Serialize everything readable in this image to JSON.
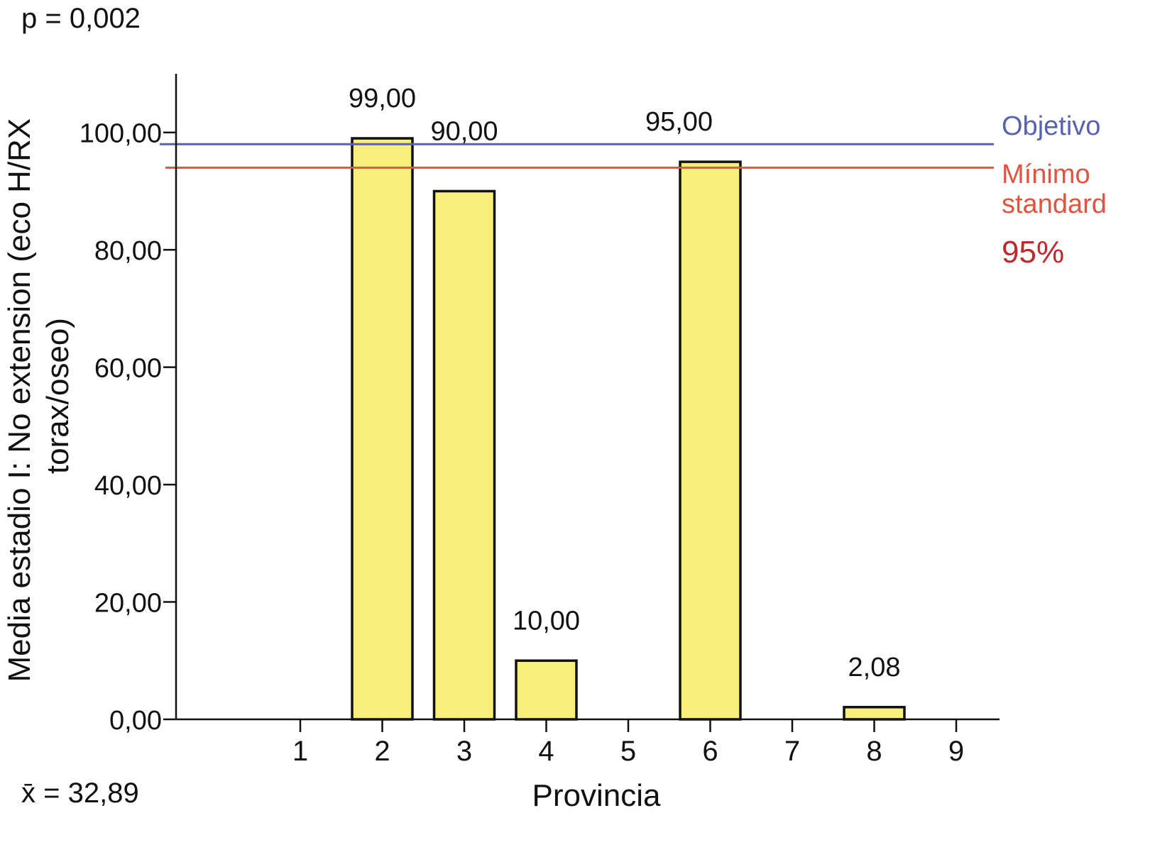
{
  "p_value_text": "p = 0,002",
  "mean_text": "x̄ = 32,89",
  "chart_data": {
    "type": "bar",
    "xlabel": "Provincia",
    "ylabel_lines": [
      "Media estadio I: No extension (eco H/RX",
      "torax/oseo)"
    ],
    "categories": [
      "1",
      "2",
      "3",
      "4",
      "5",
      "6",
      "7",
      "8",
      "9"
    ],
    "values": [
      null,
      99.0,
      90.0,
      10.0,
      null,
      95.0,
      null,
      2.08,
      null
    ],
    "value_labels": [
      "",
      "99,00",
      "90,00",
      "10,00",
      "",
      "95,00",
      "",
      "2,08",
      ""
    ],
    "ylim": [
      0,
      110
    ],
    "yticks": [
      0,
      20,
      40,
      60,
      80,
      100
    ],
    "ytick_labels": [
      "0,00",
      "20,00",
      "40,00",
      "60,00",
      "80,00",
      "100,00"
    ],
    "bar_color": "#f7ef7a",
    "reference_lines": [
      {
        "label_lines": [
          "Objetivo"
        ],
        "value": 98,
        "color": "#5a62b0"
      },
      {
        "label_lines": [
          "Mínimo",
          "standard"
        ],
        "value": 94,
        "color": "#e4533f"
      }
    ],
    "percent_label": "95%",
    "percent_color": "#c0282d"
  }
}
